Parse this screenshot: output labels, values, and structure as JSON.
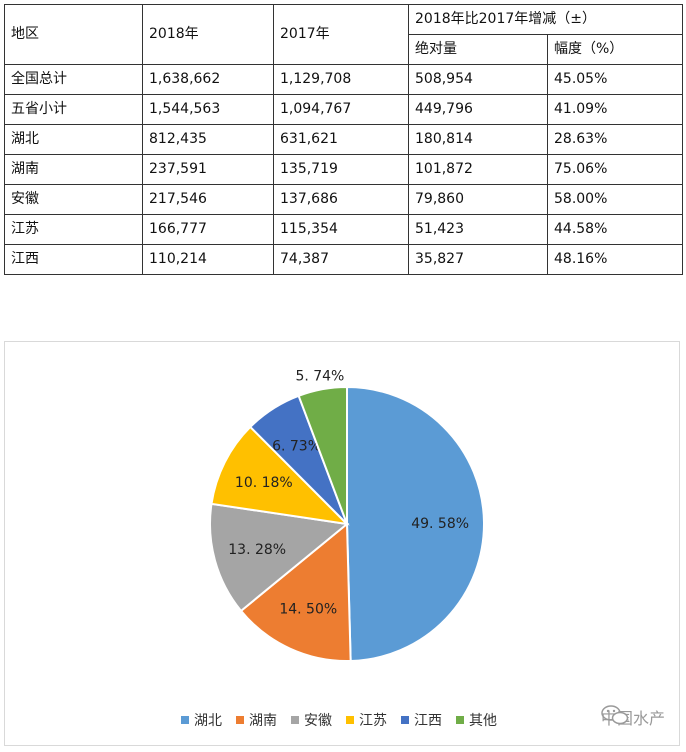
{
  "table": {
    "header": {
      "region": "地区",
      "y2018": "2018年",
      "y2017": "2017年",
      "change": "2018年比2017年增减（±）",
      "absolute": "绝对量",
      "rate": "幅度（%）"
    },
    "rows": [
      {
        "region": "全国总计",
        "y2018": "1,638,662",
        "y2017": "1,129,708",
        "absolute": "508,954",
        "rate": "45.05%"
      },
      {
        "region": "五省小计",
        "y2018": "1,544,563",
        "y2017": "1,094,767",
        "absolute": "449,796",
        "rate": "41.09%"
      },
      {
        "region": "湖北",
        "y2018": "812,435",
        "y2017": "631,621",
        "absolute": "180,814",
        "rate": "28.63%"
      },
      {
        "region": "湖南",
        "y2018": "237,591",
        "y2017": "135,719",
        "absolute": "101,872",
        "rate": "75.06%"
      },
      {
        "region": "安徽",
        "y2018": "217,546",
        "y2017": "137,686",
        "absolute": "79,860",
        "rate": "58.00%"
      },
      {
        "region": "江苏",
        "y2018": "166,777",
        "y2017": "115,354",
        "absolute": "51,423",
        "rate": "44.58%"
      },
      {
        "region": "江西",
        "y2018": "110,214",
        "y2017": "74,387",
        "absolute": "35,827",
        "rate": "48.16%"
      }
    ]
  },
  "chart_data": {
    "type": "pie",
    "categories": [
      "湖北",
      "湖南",
      "安徽",
      "江苏",
      "江西",
      "其他"
    ],
    "values": [
      49.58,
      14.5,
      13.28,
      10.18,
      6.73,
      5.74
    ],
    "labels": [
      "49. 58%",
      "14. 50%",
      "13. 28%",
      "10. 18%",
      "6. 73%",
      "5. 74%"
    ],
    "colors": [
      "#5b9bd5",
      "#ed7d31",
      "#a5a5a5",
      "#ffc000",
      "#4472c4",
      "#70ad47"
    ],
    "legend_position": "bottom"
  },
  "watermark": {
    "text": "中国水产",
    "icon": "wechat-icon"
  }
}
